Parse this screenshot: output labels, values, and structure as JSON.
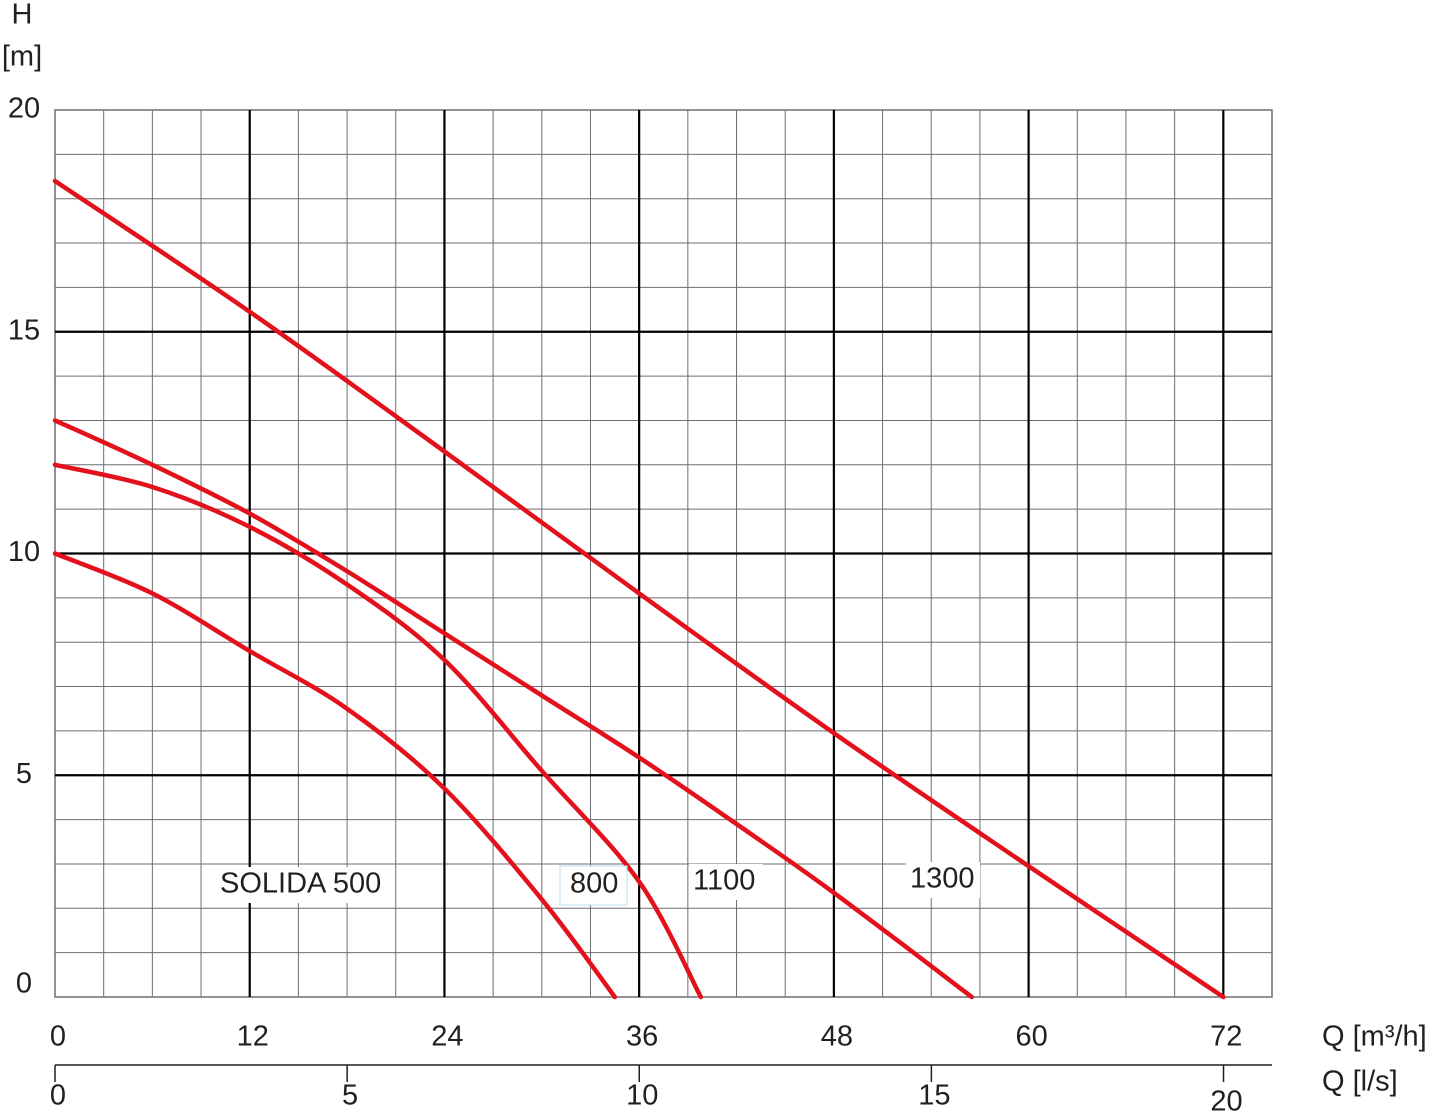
{
  "chart_data": {
    "type": "line",
    "y_label": "H",
    "y_unit": "[m]",
    "x_label": "Q [m³/h]",
    "x2_label": "Q [l/s]",
    "xlim": [
      0,
      75
    ],
    "xticks": [
      0,
      12,
      24,
      36,
      48,
      60,
      72
    ],
    "x2lim": [
      0,
      20.83
    ],
    "x2ticks": [
      0,
      5,
      10,
      15,
      20
    ],
    "ylim": [
      0,
      20
    ],
    "yticks": [
      0,
      5,
      10,
      15,
      20
    ],
    "grid": true,
    "x_minor_step": 3,
    "y_minor_step": 1,
    "series": [
      {
        "name": "SOLIDA 500",
        "color": "#e3111b",
        "x": [
          0,
          6,
          12,
          18,
          24,
          30,
          34.5
        ],
        "values": [
          10,
          9.1,
          7.8,
          6.5,
          4.7,
          2.2,
          0
        ]
      },
      {
        "name": "800",
        "color": "#e3111b",
        "x": [
          0,
          6,
          12,
          18,
          24,
          30,
          36,
          39.8
        ],
        "values": [
          12,
          11.5,
          10.6,
          9.3,
          7.6,
          5.1,
          2.6,
          0
        ]
      },
      {
        "name": "1100",
        "color": "#e3111b",
        "x": [
          0,
          6,
          12,
          18,
          24,
          30,
          36,
          42,
          48,
          56.5
        ],
        "values": [
          13,
          12,
          10.9,
          9.6,
          8.2,
          6.8,
          5.4,
          3.9,
          2.35,
          0
        ]
      },
      {
        "name": "1300",
        "color": "#e3111b",
        "x": [
          0,
          12,
          24,
          36,
          48,
          60,
          72
        ],
        "values": [
          18.4,
          15.45,
          12.3,
          9.1,
          5.95,
          2.95,
          0
        ]
      }
    ]
  }
}
